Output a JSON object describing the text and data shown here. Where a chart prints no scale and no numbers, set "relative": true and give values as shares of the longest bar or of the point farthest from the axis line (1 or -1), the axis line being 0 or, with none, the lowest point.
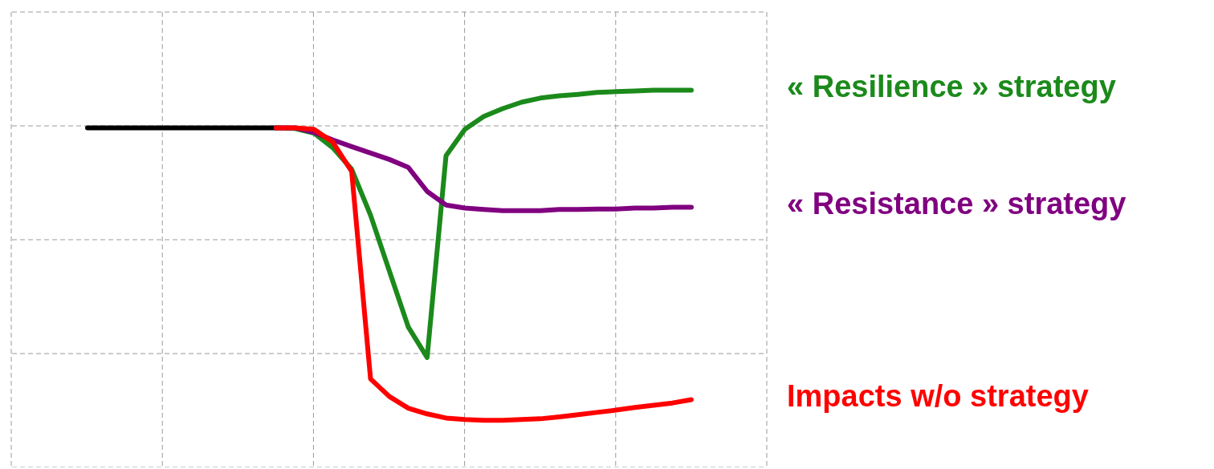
{
  "chart_data": {
    "type": "line",
    "relative": true,
    "grid": true,
    "categories": [
      null,
      null,
      null,
      null,
      null,
      null,
      null,
      null,
      null,
      null,
      null,
      null,
      null,
      null,
      null,
      null,
      null,
      null,
      null,
      null,
      null,
      null,
      null,
      null,
      null,
      null,
      null,
      null,
      null,
      null,
      null,
      null,
      null,
      null,
      null,
      null,
      null,
      null,
      null,
      null,
      null
    ],
    "series": [
      {
        "color": "#000000",
        "values": [
          null,
          null,
          null,
          null,
          0.9,
          0.9,
          0.9,
          0.9,
          0.9,
          0.9,
          0.9,
          0.9,
          0.9,
          0.9,
          0.9,
          null,
          null,
          null,
          null,
          null,
          null,
          null,
          null,
          null,
          null,
          null,
          null,
          null,
          null,
          null,
          null,
          null,
          null,
          null,
          null,
          null,
          null,
          null,
          null,
          null,
          null
        ]
      },
      {
        "name": "« Resilience » strategy",
        "color": "#1b8a1b",
        "values": [
          null,
          null,
          null,
          null,
          null,
          null,
          null,
          null,
          null,
          null,
          null,
          null,
          null,
          null,
          0.9,
          0.898,
          0.886,
          0.847,
          0.79,
          0.668,
          0.519,
          0.371,
          0.29,
          0.826,
          0.896,
          0.93,
          0.951,
          0.968,
          0.979,
          0.985,
          0.989,
          0.994,
          0.996,
          0.998,
          1,
          1,
          1,
          null,
          null,
          null,
          null
        ]
      },
      {
        "name": "« Resistance » strategy",
        "color": "#800080",
        "values": [
          null,
          null,
          null,
          null,
          null,
          null,
          null,
          null,
          null,
          null,
          null,
          null,
          null,
          null,
          0.9,
          0.9,
          0.888,
          0.868,
          0.85,
          0.833,
          0.816,
          0.795,
          0.731,
          0.695,
          0.687,
          0.683,
          0.68,
          0.68,
          0.68,
          0.683,
          0.683,
          0.684,
          0.684,
          0.687,
          0.687,
          0.689,
          0.689,
          null,
          null,
          null,
          null
        ]
      },
      {
        "name": "Impacts w/o strategy",
        "color": "#ff0000",
        "values": [
          null,
          null,
          null,
          null,
          null,
          null,
          null,
          null,
          null,
          null,
          null,
          null,
          null,
          null,
          0.9,
          0.9,
          0.896,
          0.862,
          0.784,
          0.233,
          0.186,
          0.155,
          0.14,
          0.129,
          0.125,
          0.123,
          0.123,
          0.125,
          0.127,
          0.132,
          0.138,
          0.144,
          0.15,
          0.157,
          0.163,
          0.169,
          0.178,
          null,
          null,
          null,
          null
        ]
      }
    ]
  }
}
